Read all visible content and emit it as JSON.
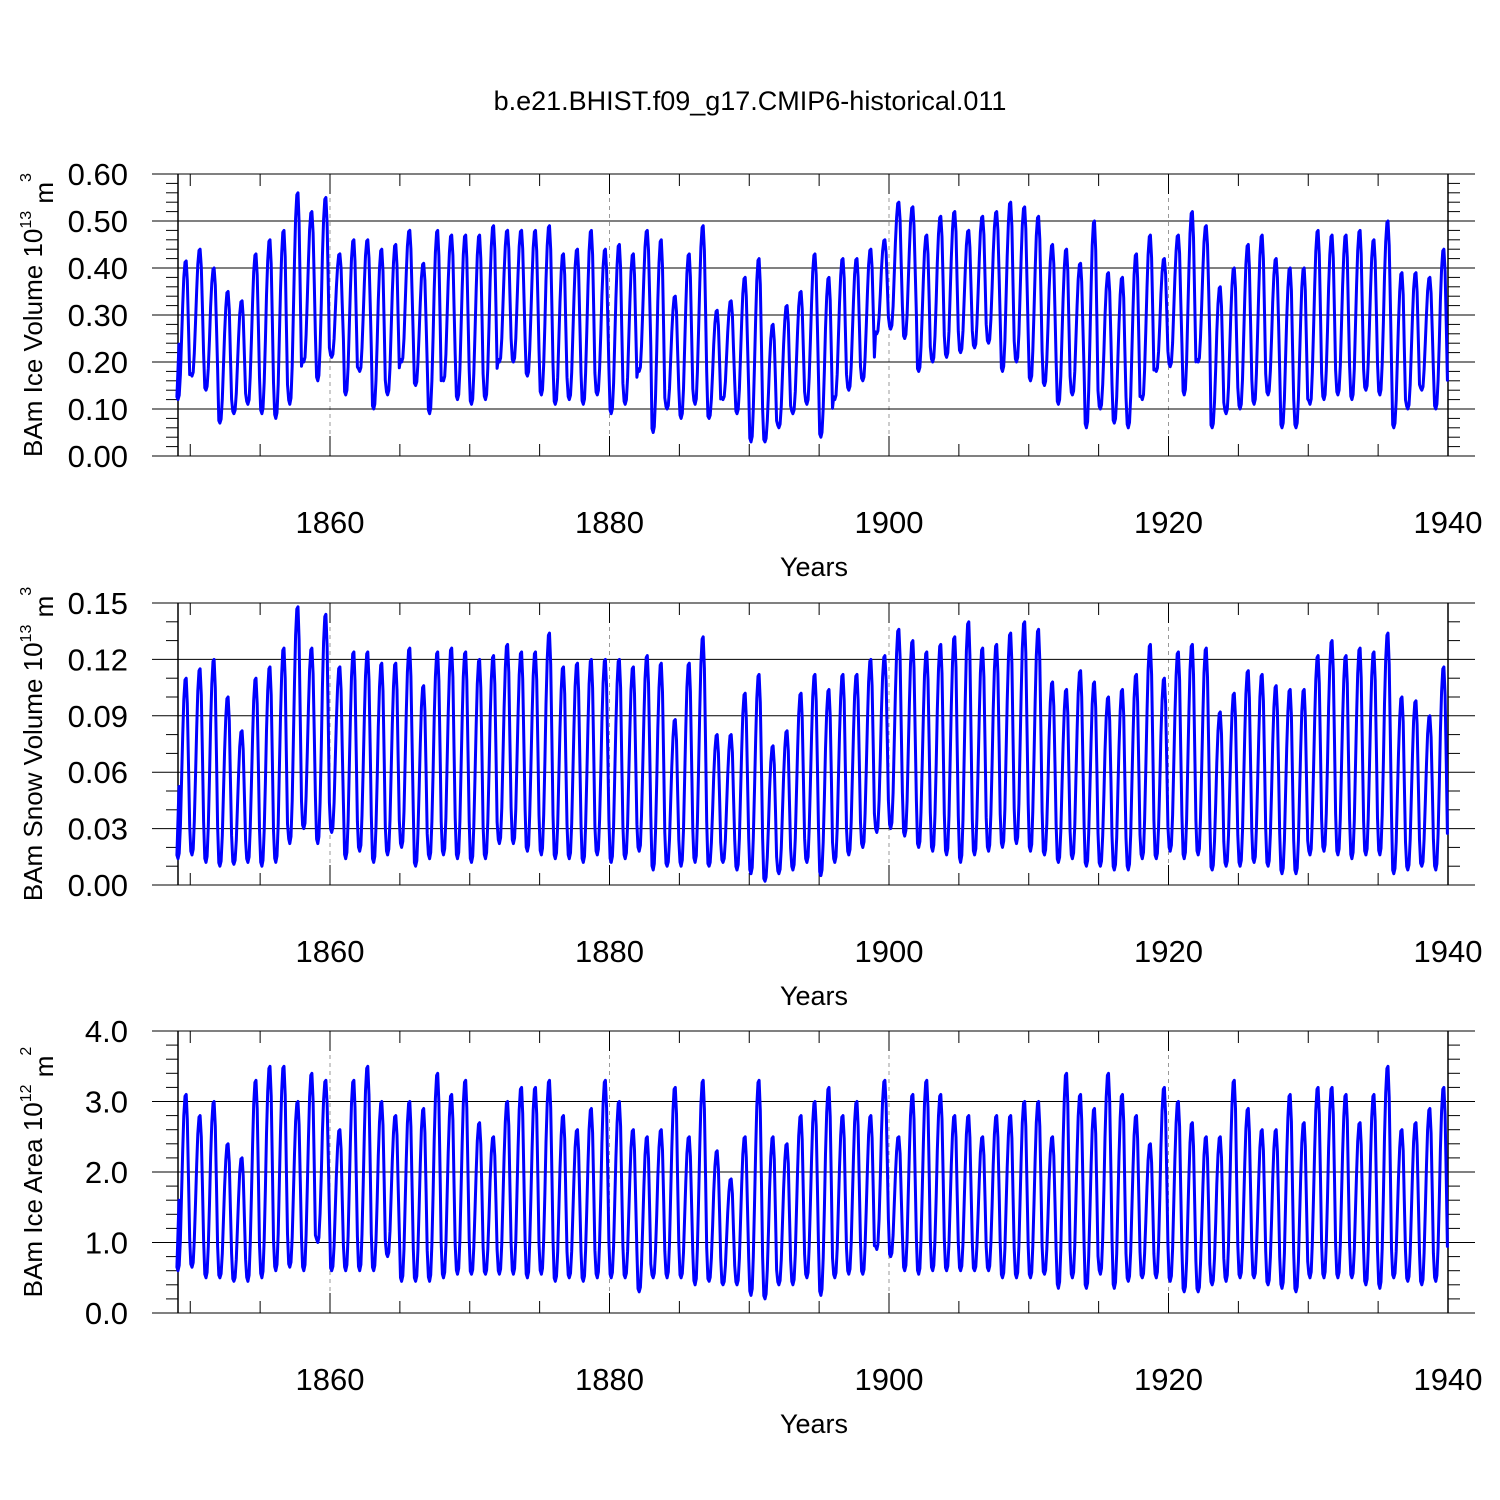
{
  "figure": {
    "title": "b.e21.BHIST.f09_g17.CMIP6-historical.011"
  },
  "colors": {
    "series": "#0000ff",
    "axis": "#000000",
    "gridline": "#999999"
  },
  "chart_data": [
    {
      "type": "line",
      "xlabel": "Years",
      "ylabel_main": "BAm Ice Volume 10",
      "ylabel_exp": "13",
      "ylabel_unit": " m",
      "ylabel_unit_exp": "3",
      "xlim": [
        1848.9,
        1940
      ],
      "ylim": [
        0,
        0.6
      ],
      "x_ticks": [
        "1860",
        "1880",
        "1900",
        "1920",
        "1940"
      ],
      "y_ticks": [
        "0.00",
        "0.10",
        "0.20",
        "0.30",
        "0.40",
        "0.50",
        "0.60"
      ],
      "vertical_dashed_grid": true,
      "series": [
        {
          "frequency": "monthly",
          "start_year": 1849,
          "annual_max": [
            0.415,
            0.44,
            0.4,
            0.35,
            0.33,
            0.43,
            0.46,
            0.48,
            0.56,
            0.52,
            0.55,
            0.43,
            0.46,
            0.46,
            0.44,
            0.45,
            0.48,
            0.41,
            0.48,
            0.47,
            0.47,
            0.47,
            0.49,
            0.48,
            0.48,
            0.48,
            0.49,
            0.43,
            0.44,
            0.48,
            0.44,
            0.45,
            0.43,
            0.48,
            0.46,
            0.34,
            0.43,
            0.49,
            0.31,
            0.33,
            0.38,
            0.42,
            0.28,
            0.32,
            0.35,
            0.43,
            0.38,
            0.42,
            0.42,
            0.44,
            0.46,
            0.54,
            0.53,
            0.47,
            0.51,
            0.52,
            0.48,
            0.51,
            0.52,
            0.54,
            0.53,
            0.51,
            0.45,
            0.44,
            0.41,
            0.5,
            0.39,
            0.38,
            0.43,
            0.47,
            0.42,
            0.47,
            0.52,
            0.49,
            0.36,
            0.4,
            0.45,
            0.47,
            0.42,
            0.4,
            0.4,
            0.48,
            0.47,
            0.47,
            0.48,
            0.46,
            0.5,
            0.39,
            0.39,
            0.38,
            0.44
          ],
          "annual_min": [
            0.12,
            0.17,
            0.14,
            0.07,
            0.09,
            0.11,
            0.09,
            0.08,
            0.11,
            0.2,
            0.16,
            0.21,
            0.13,
            0.18,
            0.1,
            0.13,
            0.2,
            0.15,
            0.09,
            0.16,
            0.12,
            0.11,
            0.12,
            0.2,
            0.2,
            0.17,
            0.13,
            0.11,
            0.12,
            0.11,
            0.13,
            0.09,
            0.11,
            0.18,
            0.05,
            0.1,
            0.08,
            0.11,
            0.08,
            0.12,
            0.09,
            0.03,
            0.03,
            0.06,
            0.09,
            0.11,
            0.04,
            0.12,
            0.14,
            0.16,
            0.26,
            0.27,
            0.25,
            0.18,
            0.2,
            0.21,
            0.22,
            0.23,
            0.24,
            0.18,
            0.2,
            0.16,
            0.15,
            0.11,
            0.13,
            0.06,
            0.1,
            0.07,
            0.06,
            0.12,
            0.18,
            0.19,
            0.13,
            0.2,
            0.06,
            0.09,
            0.1,
            0.11,
            0.13,
            0.06,
            0.06,
            0.11,
            0.12,
            0.13,
            0.12,
            0.14,
            0.13,
            0.06,
            0.1,
            0.14,
            0.1
          ]
        }
      ]
    },
    {
      "type": "line",
      "xlabel": "Years",
      "ylabel_main": "BAm Snow Volume 10",
      "ylabel_exp": "13",
      "ylabel_unit": " m",
      "ylabel_unit_exp": "3",
      "xlim": [
        1848.9,
        1940
      ],
      "ylim": [
        0,
        0.15
      ],
      "x_ticks": [
        "1860",
        "1880",
        "1900",
        "1920",
        "1940"
      ],
      "y_ticks": [
        "0.00",
        "0.03",
        "0.06",
        "0.09",
        "0.12",
        "0.15"
      ],
      "vertical_dashed_grid": true,
      "series": [
        {
          "frequency": "monthly",
          "start_year": 1849,
          "annual_max": [
            0.11,
            0.115,
            0.12,
            0.1,
            0.082,
            0.11,
            0.116,
            0.126,
            0.148,
            0.126,
            0.144,
            0.116,
            0.124,
            0.124,
            0.118,
            0.118,
            0.126,
            0.106,
            0.124,
            0.126,
            0.124,
            0.12,
            0.122,
            0.128,
            0.124,
            0.124,
            0.134,
            0.116,
            0.118,
            0.12,
            0.12,
            0.12,
            0.116,
            0.122,
            0.118,
            0.088,
            0.118,
            0.132,
            0.08,
            0.08,
            0.102,
            0.112,
            0.074,
            0.082,
            0.102,
            0.112,
            0.104,
            0.112,
            0.112,
            0.12,
            0.122,
            0.136,
            0.13,
            0.124,
            0.128,
            0.132,
            0.14,
            0.126,
            0.128,
            0.134,
            0.14,
            0.136,
            0.108,
            0.104,
            0.114,
            0.108,
            0.1,
            0.104,
            0.112,
            0.128,
            0.11,
            0.124,
            0.128,
            0.126,
            0.092,
            0.102,
            0.114,
            0.112,
            0.106,
            0.104,
            0.104,
            0.122,
            0.13,
            0.122,
            0.126,
            0.124,
            0.134,
            0.1,
            0.098,
            0.09,
            0.116
          ],
          "annual_min": [
            0.014,
            0.016,
            0.012,
            0.01,
            0.011,
            0.012,
            0.01,
            0.012,
            0.022,
            0.03,
            0.022,
            0.028,
            0.014,
            0.018,
            0.012,
            0.016,
            0.02,
            0.01,
            0.014,
            0.016,
            0.014,
            0.012,
            0.014,
            0.022,
            0.022,
            0.018,
            0.016,
            0.014,
            0.014,
            0.012,
            0.016,
            0.012,
            0.014,
            0.018,
            0.008,
            0.01,
            0.01,
            0.012,
            0.01,
            0.012,
            0.008,
            0.006,
            0.002,
            0.006,
            0.008,
            0.012,
            0.005,
            0.012,
            0.016,
            0.02,
            0.028,
            0.03,
            0.026,
            0.02,
            0.018,
            0.016,
            0.012,
            0.016,
            0.018,
            0.02,
            0.022,
            0.018,
            0.016,
            0.012,
            0.014,
            0.01,
            0.01,
            0.008,
            0.008,
            0.014,
            0.014,
            0.018,
            0.014,
            0.016,
            0.008,
            0.01,
            0.01,
            0.012,
            0.01,
            0.006,
            0.006,
            0.016,
            0.018,
            0.016,
            0.014,
            0.016,
            0.016,
            0.006,
            0.008,
            0.01,
            0.008
          ]
        }
      ]
    },
    {
      "type": "line",
      "xlabel": "Years",
      "ylabel_main": "BAm Ice Area 10",
      "ylabel_exp": "12",
      "ylabel_unit": " m",
      "ylabel_unit_exp": "2",
      "xlim": [
        1848.9,
        1940
      ],
      "ylim": [
        0,
        4
      ],
      "x_ticks": [
        "1860",
        "1880",
        "1900",
        "1920",
        "1940"
      ],
      "y_ticks": [
        "0.0",
        "1.0",
        "2.0",
        "3.0",
        "4.0"
      ],
      "vertical_dashed_grid": true,
      "series": [
        {
          "frequency": "monthly",
          "start_year": 1849,
          "annual_max": [
            3.1,
            2.8,
            3.0,
            2.4,
            2.2,
            3.3,
            3.5,
            3.5,
            3.0,
            3.4,
            3.3,
            2.6,
            3.3,
            3.5,
            3.0,
            2.8,
            3.0,
            2.9,
            3.4,
            3.1,
            3.3,
            2.7,
            2.5,
            3.0,
            3.2,
            3.2,
            3.3,
            2.8,
            2.6,
            2.9,
            3.3,
            3.0,
            2.6,
            2.5,
            2.6,
            3.2,
            2.5,
            3.3,
            2.3,
            1.9,
            2.5,
            3.3,
            2.5,
            2.4,
            2.8,
            3.0,
            3.2,
            2.8,
            3.0,
            2.8,
            3.3,
            2.5,
            3.1,
            3.3,
            3.1,
            2.8,
            2.8,
            2.5,
            2.8,
            2.8,
            3.0,
            3.0,
            2.5,
            3.4,
            3.1,
            2.9,
            3.4,
            3.1,
            2.8,
            2.4,
            3.2,
            3.0,
            2.7,
            2.5,
            2.5,
            3.3,
            2.9,
            2.6,
            2.6,
            3.1,
            2.7,
            3.2,
            3.2,
            3.1,
            2.7,
            3.1,
            3.5,
            2.6,
            2.7,
            2.9,
            3.2
          ],
          "annual_min": [
            0.6,
            0.65,
            0.5,
            0.5,
            0.45,
            0.45,
            0.5,
            0.6,
            0.65,
            0.6,
            1.0,
            0.6,
            0.6,
            0.6,
            0.6,
            0.8,
            0.45,
            0.45,
            0.45,
            0.5,
            0.55,
            0.55,
            0.55,
            0.55,
            0.55,
            0.5,
            0.55,
            0.45,
            0.5,
            0.45,
            0.5,
            0.5,
            0.5,
            0.3,
            0.5,
            0.5,
            0.5,
            0.4,
            0.45,
            0.4,
            0.4,
            0.25,
            0.2,
            0.4,
            0.4,
            0.5,
            0.25,
            0.5,
            0.55,
            0.55,
            0.9,
            0.8,
            0.6,
            0.55,
            0.6,
            0.6,
            0.6,
            0.6,
            0.6,
            0.5,
            0.5,
            0.5,
            0.55,
            0.35,
            0.5,
            0.35,
            0.55,
            0.35,
            0.45,
            0.5,
            0.5,
            0.45,
            0.3,
            0.3,
            0.4,
            0.45,
            0.5,
            0.5,
            0.4,
            0.35,
            0.3,
            0.5,
            0.5,
            0.5,
            0.5,
            0.4,
            0.35,
            0.5,
            0.45,
            0.4,
            0.45
          ]
        }
      ]
    }
  ]
}
